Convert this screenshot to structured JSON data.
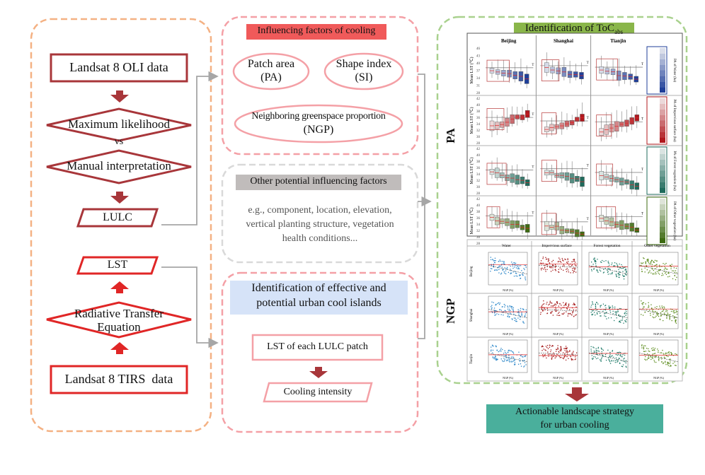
{
  "panels": {
    "data_processing": {
      "steps": [
        {
          "id": "oli",
          "label": "Landsat 8 OLI data",
          "shape": "rect"
        },
        {
          "id": "ml",
          "label": "Maximum likelihood",
          "shape": "diamond"
        },
        {
          "id": "vs",
          "label": "vs",
          "shape": "text"
        },
        {
          "id": "mi",
          "label": "Manual interpretation",
          "shape": "diamond"
        },
        {
          "id": "lulc",
          "label": "LULC",
          "shape": "parallelogram"
        },
        {
          "id": "lst",
          "label": "LST",
          "shape": "parallelogram"
        },
        {
          "id": "rte",
          "label_line1": "Radiative Transfer",
          "label_line2": "Equation",
          "shape": "diamond"
        },
        {
          "id": "tirs",
          "label": "Landsat 8 TIRS  data",
          "shape": "rect"
        }
      ]
    },
    "influencing_factors": {
      "title": "Influencing factors of cooling",
      "factors": [
        {
          "line1": "Patch area",
          "line2": "(PA)"
        },
        {
          "line1": "Shape index",
          "line2": "(SI)"
        },
        {
          "line1": "Neighboring greenspace proportion",
          "line2": "(NGP)"
        }
      ]
    },
    "other_factors": {
      "title": "Other potential influencing factors",
      "lines": [
        "e.g., component, location, elevation,",
        "vertical planting structure, vegetation",
        "health conditions..."
      ]
    },
    "cool_islands": {
      "title_line1": "Identification of effective and",
      "title_line2": "potential urban cool islands",
      "step1": "LST of each LULC patch",
      "step2": "Cooling intensity"
    },
    "toc": {
      "title": "Identification of ToC",
      "title_sub": "abs",
      "pa_label": "PA",
      "ngp_label": "NGP",
      "pa_chart": {
        "cities": [
          "Beijing",
          "Shanghai",
          "Tianjin"
        ],
        "y_label": "Mean LST (℃)",
        "rows": [
          {
            "name": "Water",
            "legend": "PA of Water (ha)",
            "yticks": [
              "28",
              "31",
              "34",
              "37",
              "40",
              "43",
              "46"
            ],
            "color": "#1f3f99"
          },
          {
            "name": "Impervious surface",
            "legend": "PA of Impervious surface (ha)",
            "yticks": [
              "28",
              "30",
              "32",
              "34",
              "36",
              "38",
              "40",
              "42"
            ],
            "color": "#b0181e"
          },
          {
            "name": "Forest vegetation",
            "legend": "PA of Forest vegetation (ha)",
            "yticks": [
              "28",
              "30",
              "32",
              "34",
              "36",
              "38",
              "40",
              "42"
            ],
            "color": "#1f6b5c"
          },
          {
            "name": "Other vegetation",
            "legend": "PA of Other vegetation (ha)",
            "yticks": [
              "28",
              "30",
              "32",
              "34",
              "36",
              "38",
              "40",
              "42"
            ],
            "color": "#3d6b12"
          }
        ],
        "threshold_label": "T"
      },
      "ngp_chart": {
        "columns": [
          "Water",
          "Impervious surface",
          "Forest vegetation",
          "Other vegetation"
        ],
        "rows": [
          "Beijing",
          "Shanghai",
          "Tianjin"
        ],
        "x_label": "NGP (%)",
        "y_label": "Mean LST (℃)",
        "xticks": [
          "0",
          "0.2",
          "0.4",
          "0.6",
          "0.8",
          "1"
        ],
        "colors": [
          "#2b86c8",
          "#a31818",
          "#1e7a68",
          "#5a8a1a"
        ]
      }
    },
    "outcome": {
      "line1": "Actionable landscape strategy",
      "line2": "for urban cooling"
    }
  },
  "colors": {
    "dark_red": "#a8363a",
    "bright_red": "#e02626",
    "orange_dash": "#f4b183",
    "pink_dash": "#f4a0a6",
    "grey_dash": "#d9d9d9",
    "green_dash": "#a9d18e",
    "title_red": "#f05a5a",
    "title_grey": "#c0bcbb",
    "title_blue": "#d6e3f8",
    "title_green": "#8ab64a",
    "outcome_teal": "#4aaf9c",
    "connector": "#a6a6a6"
  }
}
